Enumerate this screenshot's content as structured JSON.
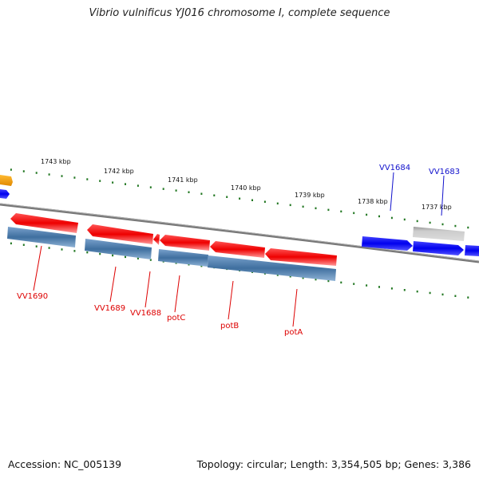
{
  "title": "Vibrio vulnificus YJ016 chromosome I, complete sequence",
  "footer": {
    "accession": "Accession: NC_005139",
    "summary": "Topology: circular; Length: 3,354,505 bp; Genes: 3,386"
  },
  "scale_labels": [
    "1743 kbp",
    "1742 kbp",
    "1741 kbp",
    "1740 kbp",
    "1739 kbp",
    "1738 kbp",
    "1737 kbp"
  ],
  "gene_labels": [
    "VV1690",
    "VV1689",
    "VV1688",
    "potC",
    "potB",
    "potA",
    "VV1684",
    "VV1683"
  ],
  "colors": {
    "forward_gene": "#0000ee",
    "reverse_gene": "#ee1111",
    "orange_gene": "#ee9900",
    "gray_gene": "#bbbbbb",
    "cds_bar": "#4477aa",
    "backbone": "#888888",
    "ticks": "#227722",
    "reverse_label": "#dd0000",
    "forward_label": "#1111cc"
  }
}
